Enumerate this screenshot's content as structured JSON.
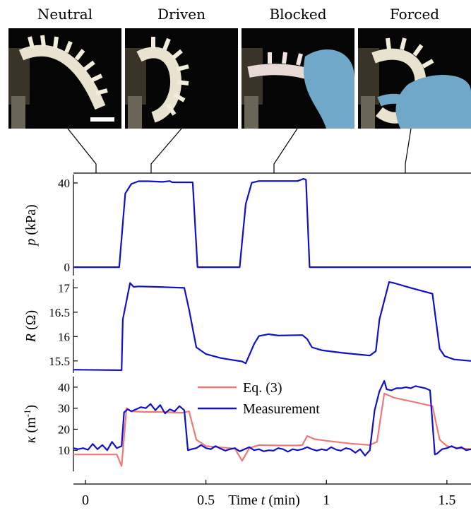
{
  "panels": [
    {
      "id": "neutral",
      "label": "Neutral"
    },
    {
      "id": "driven",
      "label": "Driven"
    },
    {
      "id": "blocked",
      "label": "Blocked"
    },
    {
      "id": "forced",
      "label": "Forced"
    }
  ],
  "colors": {
    "measurement": "#1010c8",
    "equation": "#f07878",
    "axis": "#000000",
    "glove": "#6fa8c8",
    "actuator": "#e9e2cf",
    "background_photo": "#050505"
  },
  "chart_data": [
    {
      "type": "line",
      "id": "pressure",
      "ylabel_symbol": "p",
      "ylabel_unit": "(kPa)",
      "yticks": [
        0,
        40
      ],
      "ylim": [
        -4,
        44
      ],
      "xlim": [
        -0.05,
        1.6
      ],
      "series": [
        {
          "color": "#1010c8",
          "x": [
            -0.05,
            0.14,
            0.165,
            0.19,
            0.22,
            0.26,
            0.32,
            0.35,
            0.36,
            0.42,
            0.445,
            0.465,
            0.64,
            0.665,
            0.69,
            0.72,
            0.78,
            0.88,
            0.905,
            0.915,
            0.93,
            1.6
          ],
          "y": [
            0,
            0,
            35,
            39.5,
            40.8,
            40.8,
            40.5,
            40.9,
            40.3,
            40.3,
            40.3,
            0,
            0,
            30,
            40.1,
            40.9,
            40.9,
            40.9,
            42,
            41.5,
            0,
            0
          ]
        }
      ]
    },
    {
      "type": "line",
      "id": "resistance",
      "ylabel_symbol": "R",
      "ylabel_unit": "(Ω)",
      "yticks": [
        15.5,
        16,
        16.5,
        17
      ],
      "yticklabels": [
        "15.5",
        "16",
        "16.5",
        "17"
      ],
      "ylim": [
        15.25,
        17.18
      ],
      "xlim": [
        -0.05,
        1.6
      ],
      "series": [
        {
          "color": "#1010c8",
          "x": [
            -0.05,
            0.15,
            0.155,
            0.185,
            0.2,
            0.22,
            0.3,
            0.41,
            0.43,
            0.46,
            0.5,
            0.56,
            0.61,
            0.65,
            0.665,
            0.7,
            0.72,
            0.76,
            0.8,
            0.9,
            0.92,
            0.94,
            0.98,
            1.06,
            1.18,
            1.205,
            1.22,
            1.26,
            1.28,
            1.35,
            1.44,
            1.47,
            1.49,
            1.53,
            1.6
          ],
          "y": [
            15.32,
            15.31,
            16.35,
            17.1,
            17.02,
            17.03,
            17.02,
            17.0,
            16.55,
            15.78,
            15.64,
            15.56,
            15.52,
            15.49,
            15.45,
            15.85,
            16.01,
            16.05,
            16.02,
            16.03,
            15.95,
            15.78,
            15.72,
            15.67,
            15.61,
            15.7,
            16.35,
            17.12,
            17.1,
            17.0,
            16.88,
            15.75,
            15.6,
            15.53,
            15.5
          ]
        }
      ]
    },
    {
      "type": "line",
      "id": "curvature",
      "ylabel_symbol": "κ",
      "ylabel_unit": "(m",
      "ylabel_sup": "-1",
      "ylabel_close": ")",
      "yticks": [
        10,
        20,
        30,
        40
      ],
      "ylim": [
        0,
        45
      ],
      "xlim": [
        -0.05,
        1.6
      ],
      "xticks": [
        0,
        0.5,
        1,
        1.5
      ],
      "xticklabels": [
        "0",
        "0.5",
        "1",
        "1.5"
      ],
      "xlabel_prefix": "Time",
      "xlabel_symbol": "t",
      "xlabel_unit": "(min)",
      "legend": {
        "position": "top-center"
      },
      "series": [
        {
          "name": "Eq. (3)",
          "color": "#f07878",
          "x": [
            -0.05,
            0.13,
            0.15,
            0.17,
            0.19,
            0.25,
            0.32,
            0.4,
            0.43,
            0.46,
            0.5,
            0.55,
            0.62,
            0.65,
            0.68,
            0.72,
            0.8,
            0.88,
            0.9,
            0.92,
            0.95,
            1.0,
            1.1,
            1.18,
            1.21,
            1.24,
            1.28,
            1.34,
            1.44,
            1.47,
            1.5,
            1.55,
            1.6
          ],
          "y": [
            8,
            8,
            2.5,
            30,
            28.5,
            28.2,
            28.2,
            27.8,
            28.5,
            15,
            12,
            11.5,
            10.8,
            5,
            11,
            12.5,
            12.3,
            12.3,
            12.5,
            16.8,
            15.3,
            14.5,
            13.2,
            12.5,
            14,
            37,
            35,
            33.5,
            31,
            15,
            12,
            11,
            10.5
          ]
        },
        {
          "name": "Measurement",
          "color": "#1010c8",
          "x": [
            -0.05,
            -0.03,
            -0.01,
            0.01,
            0.03,
            0.05,
            0.07,
            0.09,
            0.11,
            0.13,
            0.15,
            0.16,
            0.175,
            0.19,
            0.21,
            0.23,
            0.25,
            0.27,
            0.29,
            0.31,
            0.33,
            0.35,
            0.37,
            0.39,
            0.41,
            0.425,
            0.44,
            0.46,
            0.48,
            0.5,
            0.52,
            0.54,
            0.56,
            0.58,
            0.6,
            0.62,
            0.64,
            0.66,
            0.68,
            0.7,
            0.72,
            0.74,
            0.76,
            0.78,
            0.8,
            0.82,
            0.84,
            0.86,
            0.88,
            0.9,
            0.92,
            0.94,
            0.96,
            0.98,
            1.0,
            1.02,
            1.04,
            1.06,
            1.08,
            1.1,
            1.12,
            1.14,
            1.16,
            1.18,
            1.2,
            1.22,
            1.24,
            1.25,
            1.27,
            1.29,
            1.31,
            1.33,
            1.35,
            1.37,
            1.39,
            1.41,
            1.43,
            1.45,
            1.46,
            1.48,
            1.5,
            1.52,
            1.54,
            1.56,
            1.58,
            1.6
          ],
          "y": [
            11,
            10.5,
            11,
            10.2,
            13,
            10.5,
            12.5,
            10,
            14,
            11,
            12,
            28,
            29.5,
            28.5,
            29.5,
            30.5,
            30,
            32,
            29,
            31.5,
            27.5,
            29.5,
            28.5,
            31,
            29,
            10,
            10.5,
            11,
            12.5,
            11,
            10.5,
            12,
            10.8,
            9.8,
            10.5,
            11,
            9.5,
            10.5,
            11.5,
            10,
            10.5,
            9.5,
            10,
            9.8,
            11,
            10.5,
            9.3,
            10.5,
            10,
            10.5,
            11.5,
            10.5,
            9.8,
            10.5,
            10,
            11.5,
            10.3,
            9.8,
            11,
            10.5,
            8.8,
            10.5,
            7.5,
            10,
            29,
            38,
            43,
            39,
            38.5,
            39.5,
            39.5,
            40,
            39.5,
            40.5,
            40,
            39.5,
            38.5,
            8,
            8.5,
            10.5,
            11,
            12,
            10.8,
            11.5,
            10,
            10.5
          ]
        }
      ]
    }
  ]
}
